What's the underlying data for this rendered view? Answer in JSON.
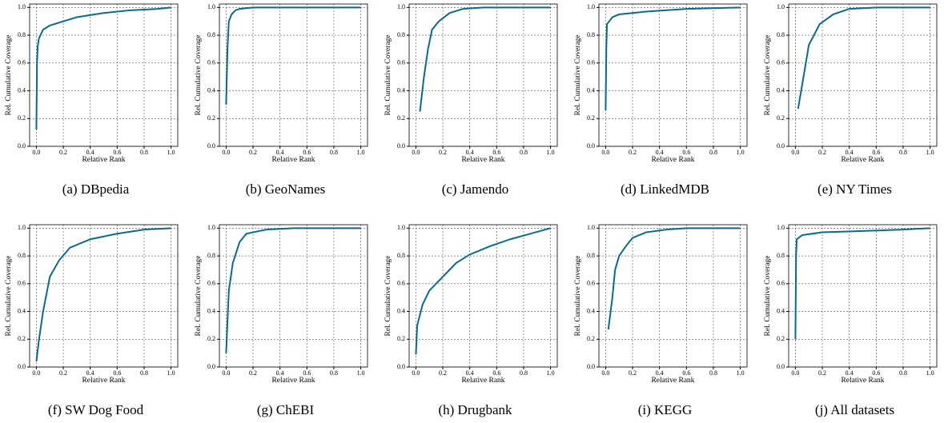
{
  "chart_data": [
    {
      "type": "line",
      "caption": "(a) DBpedia",
      "xlabel": "Relative Rank",
      "ylabel": "Rel. Cumulative Coverage",
      "color": "#0b6a8c",
      "grid": true,
      "xlim": [
        -0.05,
        1.05
      ],
      "ylim": [
        0,
        1.025
      ],
      "xticks": [
        {
          "value": 0,
          "label": "0.0"
        },
        {
          "value": 0.2,
          "label": "0.2"
        },
        {
          "value": 0.4,
          "label": "0.4"
        },
        {
          "value": 0.6,
          "label": "0.6"
        },
        {
          "value": 0.8,
          "label": "0.8"
        },
        {
          "value": 1,
          "label": "1.0"
        }
      ],
      "yticks": [
        {
          "value": 0,
          "label": "0.0"
        },
        {
          "value": 0.2,
          "label": "0.2"
        },
        {
          "value": 0.4,
          "label": "0.4"
        },
        {
          "value": 0.6,
          "label": "0.6"
        },
        {
          "value": 0.8,
          "label": "0.8"
        },
        {
          "value": 1,
          "label": "1.0"
        }
      ],
      "x": [
        0,
        0.005,
        0.01,
        0.02,
        0.05,
        0.1,
        0.2,
        0.3,
        0.5,
        0.7,
        0.9,
        1.0
      ],
      "values": [
        0.12,
        0.6,
        0.72,
        0.78,
        0.84,
        0.87,
        0.9,
        0.93,
        0.96,
        0.98,
        0.99,
        1.0
      ]
    },
    {
      "type": "line",
      "caption": "(b) GeoNames",
      "xlabel": "Relative Rank",
      "ylabel": "Rel. Cumulative Coverage",
      "color": "#0b6a8c",
      "grid": true,
      "xlim": [
        -0.05,
        1.05
      ],
      "ylim": [
        0,
        1.025
      ],
      "xticks": [
        {
          "value": 0,
          "label": "0.0"
        },
        {
          "value": 0.2,
          "label": "0.2"
        },
        {
          "value": 0.4,
          "label": "0.4"
        },
        {
          "value": 0.6,
          "label": "0.6"
        },
        {
          "value": 0.8,
          "label": "0.8"
        },
        {
          "value": 1,
          "label": "1.0"
        }
      ],
      "yticks": [
        {
          "value": 0,
          "label": "0.0"
        },
        {
          "value": 0.2,
          "label": "0.2"
        },
        {
          "value": 0.4,
          "label": "0.4"
        },
        {
          "value": 0.6,
          "label": "0.6"
        },
        {
          "value": 0.8,
          "label": "0.8"
        },
        {
          "value": 1,
          "label": "1.0"
        }
      ],
      "x": [
        0,
        0.01,
        0.02,
        0.04,
        0.07,
        0.1,
        0.2,
        0.5,
        1.0
      ],
      "values": [
        0.3,
        0.7,
        0.9,
        0.95,
        0.98,
        0.99,
        1.0,
        1.0,
        1.0
      ]
    },
    {
      "type": "line",
      "caption": "(c) Jamendo",
      "xlabel": "Relative Rank",
      "ylabel": "Rel. Cumulative Coverage",
      "color": "#0b6a8c",
      "grid": true,
      "xlim": [
        -0.05,
        1.05
      ],
      "ylim": [
        0,
        1.025
      ],
      "xticks": [
        {
          "value": 0,
          "label": "0.0"
        },
        {
          "value": 0.2,
          "label": "0.2"
        },
        {
          "value": 0.4,
          "label": "0.4"
        },
        {
          "value": 0.6,
          "label": "0.6"
        },
        {
          "value": 0.8,
          "label": "0.8"
        },
        {
          "value": 1,
          "label": "1.0"
        }
      ],
      "yticks": [
        {
          "value": 0,
          "label": "0.0"
        },
        {
          "value": 0.2,
          "label": "0.2"
        },
        {
          "value": 0.4,
          "label": "0.4"
        },
        {
          "value": 0.6,
          "label": "0.6"
        },
        {
          "value": 0.8,
          "label": "0.8"
        },
        {
          "value": 1,
          "label": "1.0"
        }
      ],
      "x": [
        0.03,
        0.06,
        0.09,
        0.12,
        0.17,
        0.25,
        0.35,
        0.5,
        1.0
      ],
      "values": [
        0.25,
        0.5,
        0.7,
        0.84,
        0.9,
        0.96,
        0.99,
        1.0,
        1.0
      ]
    },
    {
      "type": "line",
      "caption": "(d) LinkedMDB",
      "xlabel": "Relative Rank",
      "ylabel": "Rel. Cumulative Coverage",
      "color": "#0b6a8c",
      "grid": true,
      "xlim": [
        -0.05,
        1.05
      ],
      "ylim": [
        0,
        1.025
      ],
      "xticks": [
        {
          "value": 0,
          "label": "0.0"
        },
        {
          "value": 0.2,
          "label": "0.2"
        },
        {
          "value": 0.4,
          "label": "0.4"
        },
        {
          "value": 0.6,
          "label": "0.6"
        },
        {
          "value": 0.8,
          "label": "0.8"
        },
        {
          "value": 1,
          "label": "1.0"
        }
      ],
      "yticks": [
        {
          "value": 0,
          "label": "0.0"
        },
        {
          "value": 0.2,
          "label": "0.2"
        },
        {
          "value": 0.4,
          "label": "0.4"
        },
        {
          "value": 0.6,
          "label": "0.6"
        },
        {
          "value": 0.8,
          "label": "0.8"
        },
        {
          "value": 1,
          "label": "1.0"
        }
      ],
      "x": [
        0,
        0.005,
        0.01,
        0.05,
        0.1,
        0.3,
        0.6,
        1.0
      ],
      "values": [
        0.26,
        0.7,
        0.88,
        0.93,
        0.95,
        0.97,
        0.99,
        1.0
      ]
    },
    {
      "type": "line",
      "caption": "(e) NY Times",
      "xlabel": "Relative Rank",
      "ylabel": "Rel. Cumulative Coverage",
      "color": "#0b6a8c",
      "grid": true,
      "xlim": [
        -0.05,
        1.05
      ],
      "ylim": [
        0,
        1.025
      ],
      "xticks": [
        {
          "value": 0,
          "label": "0.0"
        },
        {
          "value": 0.2,
          "label": "0.2"
        },
        {
          "value": 0.4,
          "label": "0.4"
        },
        {
          "value": 0.6,
          "label": "0.6"
        },
        {
          "value": 0.8,
          "label": "0.8"
        },
        {
          "value": 1,
          "label": "1.0"
        }
      ],
      "yticks": [
        {
          "value": 0,
          "label": "0.0"
        },
        {
          "value": 0.2,
          "label": "0.2"
        },
        {
          "value": 0.4,
          "label": "0.4"
        },
        {
          "value": 0.6,
          "label": "0.6"
        },
        {
          "value": 0.8,
          "label": "0.8"
        },
        {
          "value": 1,
          "label": "1.0"
        }
      ],
      "x": [
        0.02,
        0.06,
        0.1,
        0.18,
        0.28,
        0.4,
        0.6,
        1.0
      ],
      "values": [
        0.27,
        0.5,
        0.73,
        0.88,
        0.95,
        0.99,
        1.0,
        1.0
      ]
    },
    {
      "type": "line",
      "caption": "(f) SW Dog Food",
      "xlabel": "Relative Rank",
      "ylabel": "Rel. Cumulative Coverage",
      "color": "#0b6a8c",
      "grid": true,
      "xlim": [
        -0.05,
        1.05
      ],
      "ylim": [
        0,
        1.025
      ],
      "xticks": [
        {
          "value": 0,
          "label": "0.0"
        },
        {
          "value": 0.2,
          "label": "0.2"
        },
        {
          "value": 0.4,
          "label": "0.4"
        },
        {
          "value": 0.6,
          "label": "0.6"
        },
        {
          "value": 0.8,
          "label": "0.8"
        },
        {
          "value": 1,
          "label": "1.0"
        }
      ],
      "yticks": [
        {
          "value": 0,
          "label": "0.0"
        },
        {
          "value": 0.2,
          "label": "0.2"
        },
        {
          "value": 0.4,
          "label": "0.4"
        },
        {
          "value": 0.6,
          "label": "0.6"
        },
        {
          "value": 0.8,
          "label": "0.8"
        },
        {
          "value": 1,
          "label": "1.0"
        }
      ],
      "x": [
        0,
        0.02,
        0.05,
        0.1,
        0.17,
        0.25,
        0.4,
        0.6,
        0.8,
        1.0
      ],
      "values": [
        0.04,
        0.2,
        0.4,
        0.65,
        0.77,
        0.86,
        0.92,
        0.96,
        0.99,
        1.0
      ]
    },
    {
      "type": "line",
      "caption": "(g) ChEBI",
      "xlabel": "Relative Rank",
      "ylabel": "Rel. Cumulative Coverage",
      "color": "#0b6a8c",
      "grid": true,
      "xlim": [
        -0.05,
        1.05
      ],
      "ylim": [
        0,
        1.025
      ],
      "xticks": [
        {
          "value": 0,
          "label": "0.0"
        },
        {
          "value": 0.2,
          "label": "0.2"
        },
        {
          "value": 0.4,
          "label": "0.4"
        },
        {
          "value": 0.6,
          "label": "0.6"
        },
        {
          "value": 0.8,
          "label": "0.8"
        },
        {
          "value": 1,
          "label": "1.0"
        }
      ],
      "yticks": [
        {
          "value": 0,
          "label": "0.0"
        },
        {
          "value": 0.2,
          "label": "0.2"
        },
        {
          "value": 0.4,
          "label": "0.4"
        },
        {
          "value": 0.6,
          "label": "0.6"
        },
        {
          "value": 0.8,
          "label": "0.8"
        },
        {
          "value": 1,
          "label": "1.0"
        }
      ],
      "x": [
        0,
        0.02,
        0.05,
        0.1,
        0.15,
        0.3,
        0.5,
        1.0
      ],
      "values": [
        0.1,
        0.55,
        0.75,
        0.9,
        0.96,
        0.99,
        1.0,
        1.0
      ]
    },
    {
      "type": "line",
      "caption": "(h) Drugbank",
      "xlabel": "Relative Rank",
      "ylabel": "Rel. Cumulative Coverage",
      "color": "#0b6a8c",
      "grid": true,
      "xlim": [
        -0.05,
        1.05
      ],
      "ylim": [
        0,
        1.025
      ],
      "xticks": [
        {
          "value": 0,
          "label": "0.0"
        },
        {
          "value": 0.2,
          "label": "0.2"
        },
        {
          "value": 0.4,
          "label": "0.4"
        },
        {
          "value": 0.6,
          "label": "0.6"
        },
        {
          "value": 0.8,
          "label": "0.8"
        },
        {
          "value": 1,
          "label": "1.0"
        }
      ],
      "yticks": [
        {
          "value": 0,
          "label": "0.0"
        },
        {
          "value": 0.2,
          "label": "0.2"
        },
        {
          "value": 0.4,
          "label": "0.4"
        },
        {
          "value": 0.6,
          "label": "0.6"
        },
        {
          "value": 0.8,
          "label": "0.8"
        },
        {
          "value": 1,
          "label": "1.0"
        }
      ],
      "x": [
        0,
        0.01,
        0.05,
        0.1,
        0.2,
        0.3,
        0.4,
        0.55,
        0.7,
        0.85,
        1.0
      ],
      "values": [
        0.09,
        0.3,
        0.45,
        0.55,
        0.65,
        0.75,
        0.81,
        0.87,
        0.92,
        0.96,
        1.0
      ]
    },
    {
      "type": "line",
      "caption": "(i) KEGG",
      "xlabel": "Relative Rank",
      "ylabel": "Rel. Cumulative Coverage",
      "color": "#0b6a8c",
      "grid": true,
      "xlim": [
        -0.05,
        1.05
      ],
      "ylim": [
        0,
        1.025
      ],
      "xticks": [
        {
          "value": 0,
          "label": "0.0"
        },
        {
          "value": 0.2,
          "label": "0.2"
        },
        {
          "value": 0.4,
          "label": "0.4"
        },
        {
          "value": 0.6,
          "label": "0.6"
        },
        {
          "value": 0.8,
          "label": "0.8"
        },
        {
          "value": 1,
          "label": "1.0"
        }
      ],
      "yticks": [
        {
          "value": 0,
          "label": "0.0"
        },
        {
          "value": 0.2,
          "label": "0.2"
        },
        {
          "value": 0.4,
          "label": "0.4"
        },
        {
          "value": 0.6,
          "label": "0.6"
        },
        {
          "value": 0.8,
          "label": "0.8"
        },
        {
          "value": 1,
          "label": "1.0"
        }
      ],
      "x": [
        0.02,
        0.05,
        0.07,
        0.1,
        0.15,
        0.2,
        0.3,
        0.45,
        0.6,
        1.0
      ],
      "values": [
        0.27,
        0.5,
        0.7,
        0.8,
        0.87,
        0.93,
        0.97,
        0.99,
        1.0,
        1.0
      ]
    },
    {
      "type": "line",
      "caption": "(j) All datasets",
      "xlabel": "Relative Rank",
      "ylabel": "Rel. Cumulative Coverage",
      "color": "#0b6a8c",
      "grid": true,
      "xlim": [
        -0.05,
        1.05
      ],
      "ylim": [
        0,
        1.025
      ],
      "xticks": [
        {
          "value": 0,
          "label": "0.0"
        },
        {
          "value": 0.2,
          "label": "0.2"
        },
        {
          "value": 0.4,
          "label": "0.4"
        },
        {
          "value": 0.6,
          "label": "0.6"
        },
        {
          "value": 0.8,
          "label": "0.8"
        },
        {
          "value": 1,
          "label": "1.0"
        }
      ],
      "yticks": [
        {
          "value": 0,
          "label": "0.0"
        },
        {
          "value": 0.2,
          "label": "0.2"
        },
        {
          "value": 0.4,
          "label": "0.4"
        },
        {
          "value": 0.6,
          "label": "0.6"
        },
        {
          "value": 0.8,
          "label": "0.8"
        },
        {
          "value": 1,
          "label": "1.0"
        }
      ],
      "x": [
        0,
        0.005,
        0.01,
        0.05,
        0.2,
        0.5,
        0.8,
        1.0
      ],
      "values": [
        0.2,
        0.8,
        0.92,
        0.95,
        0.97,
        0.98,
        0.99,
        1.0
      ]
    }
  ]
}
